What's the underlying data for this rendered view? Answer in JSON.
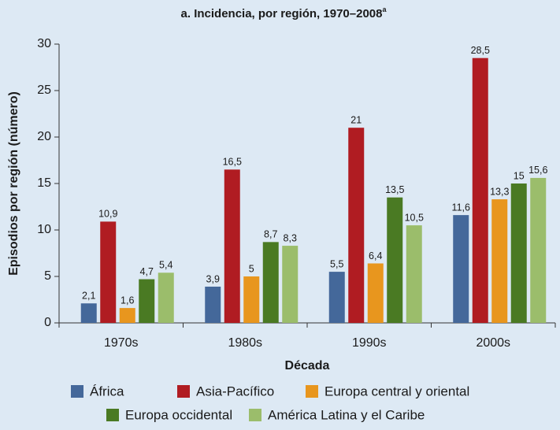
{
  "chart_data": {
    "type": "bar",
    "title": "a. Incidencia, por región, 1970–2008",
    "title_note": "a",
    "x_label": "Década",
    "y_label": "Episodios por región (número)",
    "categories": [
      "1970s",
      "1980s",
      "1990s",
      "2000s"
    ],
    "series": [
      {
        "name": "África",
        "color": "#44689a",
        "values": [
          2.1,
          3.9,
          5.5,
          11.6
        ],
        "value_labels": [
          "2,1",
          "3,9",
          "5,5",
          "11,6"
        ]
      },
      {
        "name": "Asia-Pacífico",
        "color": "#b01c22",
        "values": [
          10.9,
          16.5,
          21,
          28.5
        ],
        "value_labels": [
          "10,9",
          "16,5",
          "21",
          "28,5"
        ]
      },
      {
        "name": "Europa central y oriental",
        "color": "#e8961e",
        "values": [
          1.6,
          5,
          6.4,
          13.3
        ],
        "value_labels": [
          "1,6",
          "5",
          "6,4",
          "13,3"
        ]
      },
      {
        "name": "Europa occidental",
        "color": "#4a7a23",
        "values": [
          4.7,
          8.7,
          13.5,
          15
        ],
        "value_labels": [
          "4,7",
          "8,7",
          "13,5",
          "15"
        ]
      },
      {
        "name": "América Latina y el Caribe",
        "color": "#9bbd6b",
        "values": [
          5.4,
          8.3,
          10.5,
          15.6
        ],
        "value_labels": [
          "5,4",
          "8,3",
          "10,5",
          "15,6"
        ]
      }
    ],
    "ylim": [
      0,
      30
    ],
    "yticks": [
      0,
      5,
      10,
      15,
      20,
      25,
      30
    ],
    "grid": false
  }
}
